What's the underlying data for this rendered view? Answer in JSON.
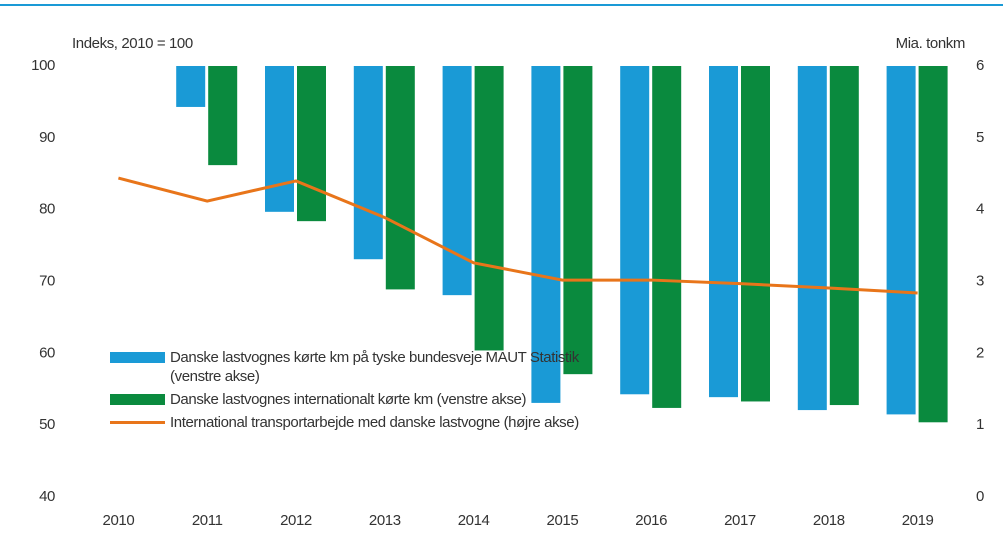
{
  "chart_data": {
    "type": "bar",
    "y_label": "Indeks, 2010 = 100",
    "y2_label": "Mia. tonkm",
    "categories": [
      "2010",
      "2011",
      "2012",
      "2013",
      "2014",
      "2015",
      "2016",
      "2017",
      "2018",
      "2019"
    ],
    "series": [
      {
        "name": "Danske lastvognes kørte km på tyske bundesveje MAUT Statistik (venstre akse)",
        "color": "#1a9ad6",
        "values": [
          100,
          94.3,
          79.7,
          73.1,
          68.1,
          53.1,
          54.3,
          53.9,
          52.1,
          51.5
        ]
      },
      {
        "name": "Danske lastvognes internationalt kørte km (venstre akse)",
        "color": "#0a8a3e",
        "values": [
          100,
          86.2,
          78.4,
          68.9,
          60.4,
          57.1,
          52.4,
          53.3,
          52.8,
          50.4
        ]
      },
      {
        "name": "International transportarbejde med danske lastvogne (højre akse)",
        "color": "#e8751a",
        "type": "line",
        "axis": "y2",
        "values": [
          4.44,
          4.12,
          4.4,
          3.89,
          3.26,
          3.02,
          3.02,
          2.97,
          2.91,
          2.84
        ]
      }
    ],
    "ylim": [
      40,
      100
    ],
    "yticks": [
      40,
      50,
      60,
      70,
      80,
      90,
      100
    ],
    "y2lim": [
      0,
      6
    ],
    "y2ticks": [
      0,
      1,
      2,
      3,
      4,
      5,
      6
    ],
    "grid": false
  }
}
